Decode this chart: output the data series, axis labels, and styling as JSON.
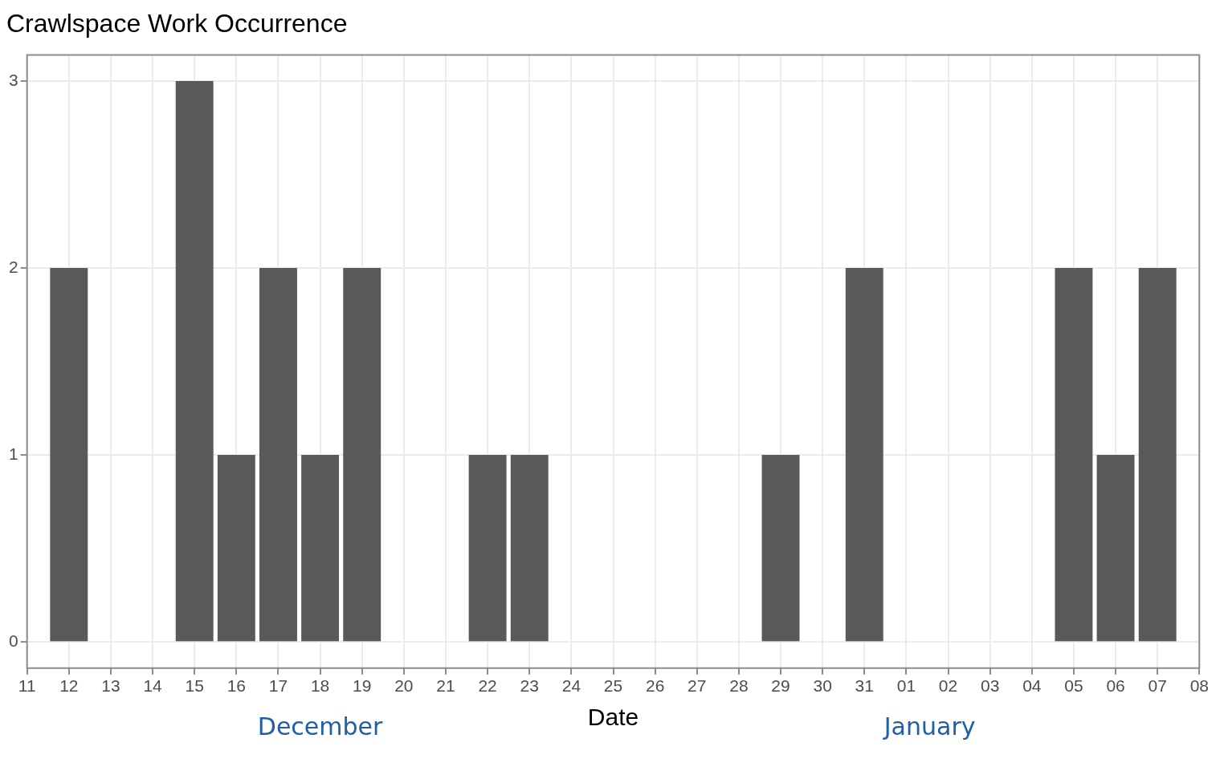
{
  "chart_data": {
    "type": "bar",
    "title": "Crawlspace Work Occurrence",
    "xlabel": "Date",
    "categories": [
      "11",
      "12",
      "13",
      "14",
      "15",
      "16",
      "17",
      "18",
      "19",
      "20",
      "21",
      "22",
      "23",
      "24",
      "25",
      "26",
      "27",
      "28",
      "29",
      "30",
      "31",
      "01",
      "02",
      "03",
      "04",
      "05",
      "06",
      "07",
      "08"
    ],
    "values": [
      0,
      2,
      0,
      0,
      3,
      1,
      2,
      1,
      2,
      0,
      0,
      1,
      1,
      0,
      0,
      0,
      0,
      0,
      1,
      0,
      2,
      0,
      0,
      0,
      0,
      2,
      1,
      2,
      0
    ],
    "color": "#595959",
    "ylim": [
      -0.14,
      3.14
    ],
    "yticks": [
      0,
      1,
      2,
      3
    ],
    "grid": true,
    "legend": false,
    "annotations": [
      "December",
      "January"
    ]
  }
}
